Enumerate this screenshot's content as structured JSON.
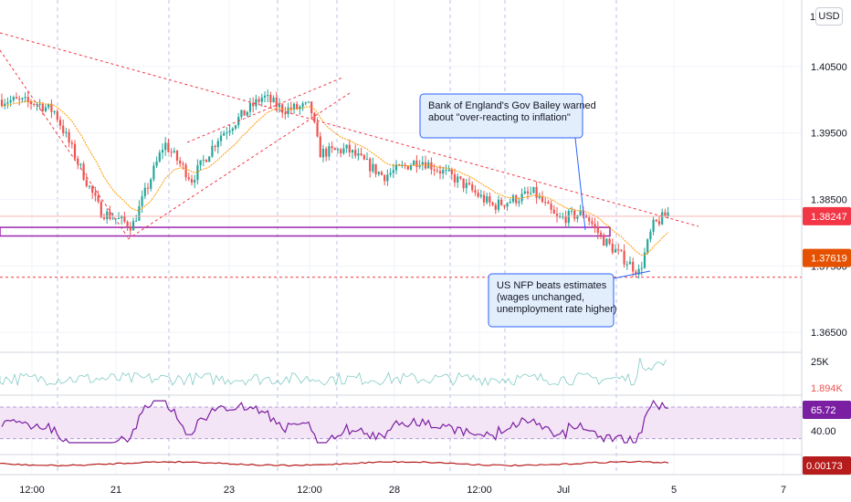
{
  "currency_label": "USD",
  "colors": {
    "up": "#26a69a",
    "down": "#ef5350",
    "trendline": "#f23645",
    "support_band": "#9c27b0",
    "annotation_border": "#2962ff",
    "annotation_fill": "#e3eefc",
    "rsi_line": "#7b1fa2",
    "rsi_band": "#f3e5f5",
    "macd_line": "#b71c1c",
    "ema_line": "#ff9800"
  },
  "chart_data": [
    {
      "type": "candlestick",
      "instrument_quote": "USD",
      "x_labels": [
        "12:00",
        "21",
        "23",
        "12:00",
        "28",
        "12:00",
        "Jul",
        "5",
        "7"
      ],
      "y_ticks": [
        "1.40500",
        "1.39500",
        "1.38500",
        "1.37500",
        "1.36500"
      ],
      "ylim": [
        1.362,
        1.415
      ],
      "price_badges": [
        {
          "label": "1.38247",
          "value": 1.38247,
          "color": "#f23645"
        },
        {
          "label": "1.37619",
          "value": 1.37619,
          "color": "#e65100"
        }
      ],
      "support_band": [
        1.3795,
        1.3808
      ],
      "support_line": 1.3733,
      "annotations": [
        {
          "lines": [
            "Bank of England's Gov Bailey warned",
            "about \"over-reacting to inflation\""
          ]
        },
        {
          "lines": [
            "US NFP beats estimates",
            "(wages unchanged,",
            "unemployment rate higher)"
          ]
        }
      ]
    },
    {
      "type": "bar",
      "name_hint": "volume",
      "y_ticks": [
        "25K"
      ],
      "last_value_label": "1.894K"
    },
    {
      "type": "line",
      "name_hint": "rsi",
      "y_ticks": [
        "40.00"
      ],
      "last_value_label": "65.72",
      "band": [
        30,
        70
      ]
    },
    {
      "type": "line",
      "name_hint": "macd",
      "last_value_label": "0.00173"
    }
  ]
}
